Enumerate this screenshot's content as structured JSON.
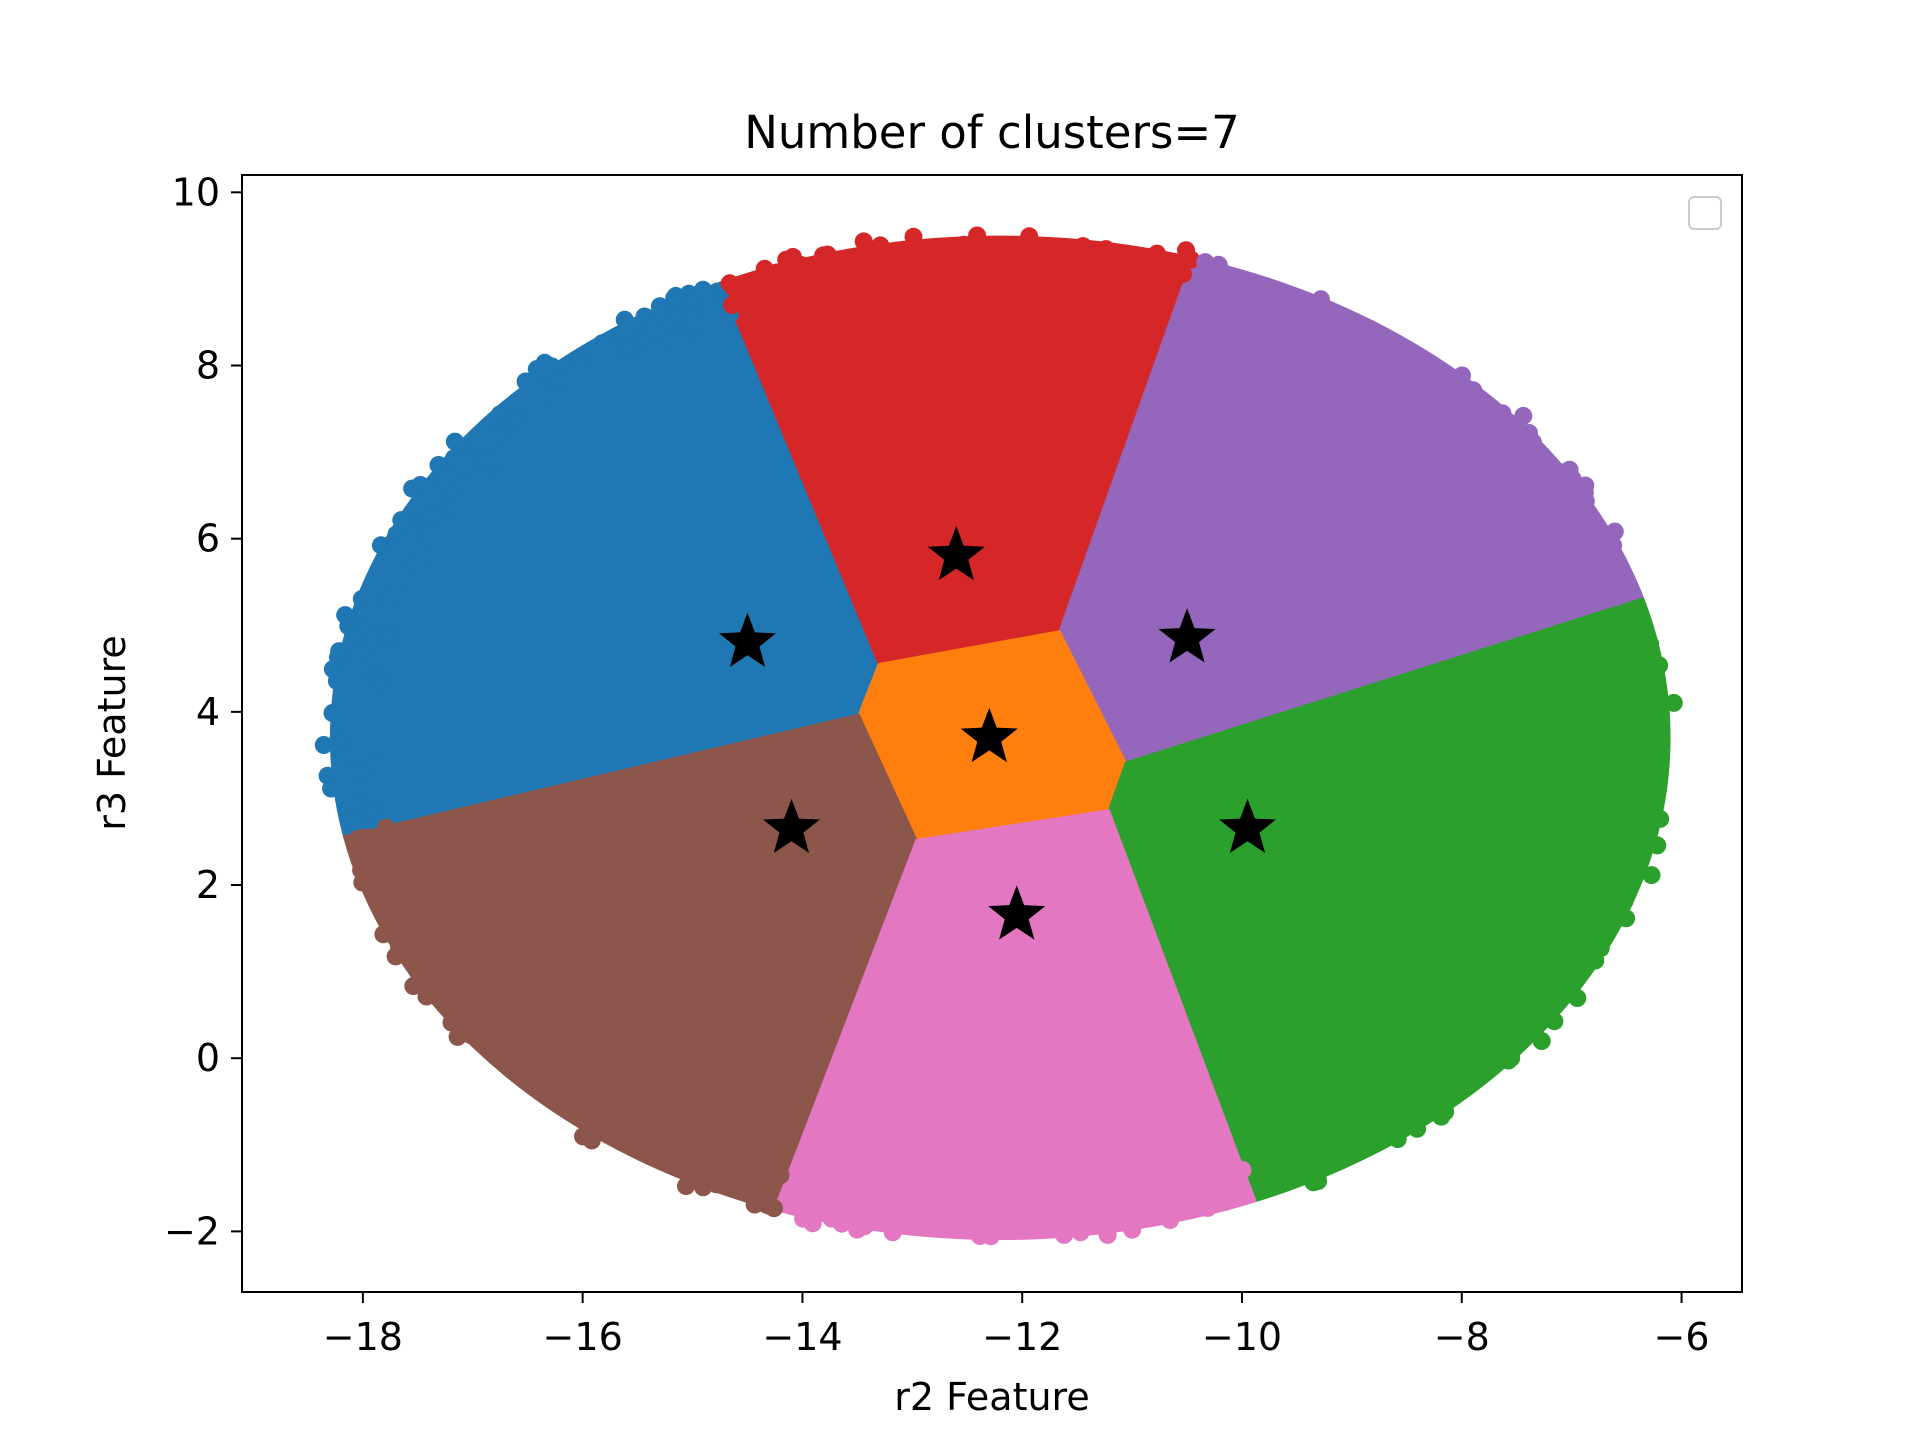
{
  "chart_data": {
    "type": "scatter",
    "title": "Number of clusters=7",
    "xlabel": "r2 Feature",
    "ylabel": "r3 Feature",
    "xlim": [
      -19.1,
      -5.45
    ],
    "ylim": [
      -2.7,
      10.2
    ],
    "xticks": [
      -18,
      -16,
      -14,
      -12,
      -10,
      -8,
      -6
    ],
    "yticks": [
      -2,
      0,
      2,
      4,
      6,
      8,
      10
    ],
    "xtick_labels": [
      "−18",
      "−16",
      "−14",
      "−12",
      "−10",
      "−8",
      "−6"
    ],
    "ytick_labels": [
      "−2",
      "0",
      "2",
      "4",
      "6",
      "8",
      "10"
    ],
    "grid": false,
    "legend": {
      "placement": "upper-right",
      "entries": []
    },
    "data_extent": {
      "center": [
        -12.2,
        3.7
      ],
      "rx": 6.1,
      "ry": 5.8
    },
    "clusters": [
      {
        "color": "#1f77b4",
        "centroid": [
          -14.5,
          4.8
        ]
      },
      {
        "color": "#d62728",
        "centroid": [
          -12.6,
          5.8
        ]
      },
      {
        "color": "#9467bd",
        "centroid": [
          -10.5,
          4.85
        ]
      },
      {
        "color": "#ff7f0e",
        "centroid": [
          -12.3,
          3.7
        ]
      },
      {
        "color": "#8c564b",
        "centroid": [
          -14.1,
          2.65
        ]
      },
      {
        "color": "#2ca02c",
        "centroid": [
          -9.95,
          2.65
        ]
      },
      {
        "color": "#e377c2",
        "centroid": [
          -12.05,
          1.65
        ]
      }
    ],
    "centroid_marker": {
      "shape": "star",
      "color": "#000000"
    }
  }
}
